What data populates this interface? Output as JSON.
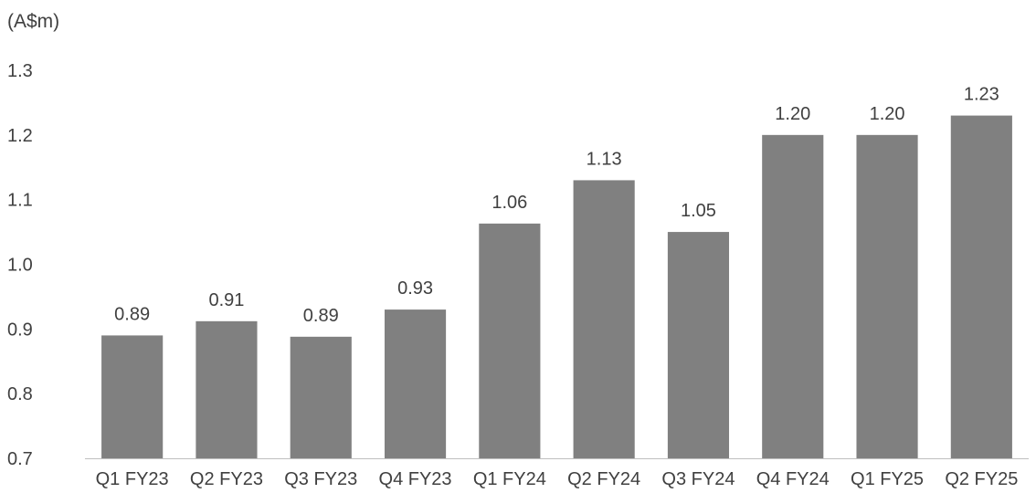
{
  "chart_data": {
    "type": "bar",
    "ylabel": "(A$m)",
    "ylim": [
      0.7,
      1.3
    ],
    "yticks": [
      "0.7",
      "0.8",
      "0.9",
      "1.0",
      "1.1",
      "1.2",
      "1.3"
    ],
    "categories": [
      "Q1 FY23",
      "Q2 FY23",
      "Q3 FY23",
      "Q4 FY23",
      "Q1 FY24",
      "Q2 FY24",
      "Q3 FY24",
      "Q4 FY24",
      "Q1 FY25",
      "Q2 FY25"
    ],
    "values": [
      0.89,
      0.912,
      0.888,
      0.93,
      1.063,
      1.13,
      1.05,
      1.2,
      1.2,
      1.23
    ],
    "data_labels": [
      "0.89",
      "0.91",
      "0.89",
      "0.93",
      "1.06",
      "1.13",
      "1.05",
      "1.20",
      "1.20",
      "1.23"
    ],
    "bar_color": "#808080",
    "grid": false,
    "legend": "none"
  }
}
